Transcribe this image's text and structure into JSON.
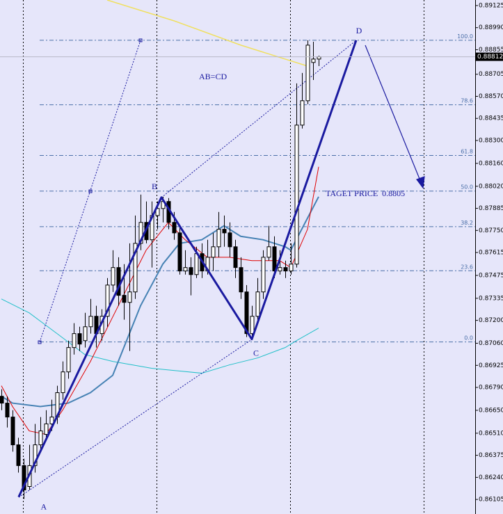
{
  "chart_data": {
    "type": "candlestick",
    "xlim": [
      -0.25,
      85.125
    ],
    "ylim": [
      0.86016,
      0.89159
    ],
    "yticks": [
      0.89125,
      {
        "value": 0.8899,
        "label": "0.88990"
      },
      0.88855,
      0.88705,
      {
        "value": 0.8857,
        "label": "0.88570"
      },
      0.88435,
      {
        "value": 0.883,
        "label": "0.88300"
      },
      {
        "value": 0.8816,
        "label": "0.88160"
      },
      {
        "value": 0.8802,
        "label": "0.88020"
      },
      0.87885,
      {
        "value": 0.8775,
        "label": "0.87750"
      },
      0.87615,
      0.87475,
      0.87335,
      {
        "value": 0.872,
        "label": "0.87200"
      },
      {
        "value": 0.8706,
        "label": "0.87060"
      },
      0.86925,
      {
        "value": 0.8679,
        "label": "0.86790"
      },
      {
        "value": 0.8665,
        "label": "0.86650"
      },
      {
        "value": 0.8651,
        "label": "0.86510"
      },
      0.86375,
      {
        "value": 0.8624,
        "label": "0.86240"
      },
      0.86105
    ],
    "current_price": 0.88812,
    "open": [
      0.86736,
      0.86694,
      0.86609,
      0.86439,
      0.86312,
      0.86184,
      0.86312,
      0.86439,
      0.86503,
      0.86567,
      0.86609,
      0.86758,
      0.86885,
      0.87034,
      0.87119,
      0.87076,
      0.87161,
      0.87225,
      0.87119,
      0.87225,
      0.87416,
      0.87523,
      0.87353,
      0.8731,
      0.87374,
      0.87671,
      0.87799,
      0.87693,
      0.87841,
      0.87884,
      0.87927,
      0.87799,
      0.87735,
      0.87502,
      0.87523,
      0.8748,
      0.87608,
      0.87502,
      0.87586,
      0.8765,
      0.87757,
      0.87735,
      0.8765,
      0.87523,
      0.87374,
      0.87119,
      0.87225,
      0.87374,
      0.87586,
      0.8765,
      0.87502,
      0.87523,
      0.87502,
      0.87544,
      0.88394,
      0.88543,
      0.88777,
      0.88798
    ],
    "high": [
      0.86779,
      0.86736,
      0.86651,
      0.86482,
      0.86354,
      0.86439,
      0.86567,
      0.86609,
      0.86651,
      0.86715,
      0.868,
      0.86949,
      0.87076,
      0.87183,
      0.87161,
      0.87246,
      0.87331,
      0.87289,
      0.87268,
      0.87459,
      0.87629,
      0.87586,
      0.87544,
      0.87671,
      0.87841,
      0.87969,
      0.87927,
      0.87927,
      0.87927,
      0.87956,
      0.87948,
      0.87863,
      0.87778,
      0.87629,
      0.87586,
      0.8765,
      0.87671,
      0.87693,
      0.87735,
      0.87863,
      0.87841,
      0.87799,
      0.87693,
      0.87586,
      0.87416,
      0.87289,
      0.87459,
      0.87629,
      0.87778,
      0.87714,
      0.87629,
      0.87565,
      0.87671,
      0.88649,
      0.88713,
      0.88913,
      0.88904,
      0.88819
    ],
    "low": [
      0.86651,
      0.86545,
      0.86397,
      0.86269,
      0.86108,
      0.86163,
      0.86269,
      0.86397,
      0.86482,
      0.86524,
      0.86567,
      0.86715,
      0.86843,
      0.86991,
      0.87013,
      0.87034,
      0.87119,
      0.87034,
      0.87076,
      0.87161,
      0.87374,
      0.87289,
      0.87204,
      0.87013,
      0.87331,
      0.87629,
      0.87671,
      0.87523,
      0.87757,
      0.87799,
      0.87757,
      0.87693,
      0.8748,
      0.8748,
      0.87353,
      0.87459,
      0.87459,
      0.8748,
      0.87502,
      0.87586,
      0.8765,
      0.87586,
      0.87459,
      0.87331,
      0.87098,
      0.87085,
      0.87183,
      0.87331,
      0.87565,
      0.87459,
      0.8748,
      0.87459,
      0.8748,
      0.87523,
      0.88373,
      0.88522,
      0.8867,
      0.88755
    ],
    "close": [
      0.86694,
      0.86609,
      0.86439,
      0.86312,
      0.86163,
      0.86312,
      0.86439,
      0.86524,
      0.86567,
      0.86609,
      0.86758,
      0.86885,
      0.87034,
      0.87119,
      0.87055,
      0.87161,
      0.87225,
      0.87119,
      0.87225,
      0.87416,
      0.87523,
      0.87353,
      0.8731,
      0.87374,
      0.87671,
      0.87799,
      0.87693,
      0.87841,
      0.87884,
      0.87927,
      0.87799,
      0.87735,
      0.87502,
      0.87523,
      0.8748,
      0.87608,
      0.87502,
      0.87586,
      0.8765,
      0.87757,
      0.87735,
      0.8765,
      0.87523,
      0.87374,
      0.87119,
      0.87225,
      0.87374,
      0.87586,
      0.8765,
      0.87502,
      0.87523,
      0.87502,
      0.87544,
      0.88394,
      0.88543,
      0.88883,
      0.88798,
      0.88812
    ],
    "lines": [
      {
        "color": "#f0e060",
        "width": 1.5,
        "x": [
          19,
          31,
          43,
          55
        ],
        "values": [
          0.89159,
          0.89032,
          0.88883,
          0.88755
        ]
      },
      {
        "color": "#20c0c8",
        "width": 1,
        "x": [
          0,
          5,
          10,
          15,
          20,
          27,
          36,
          41,
          46,
          51,
          53,
          57
        ],
        "values": [
          0.87331,
          0.87246,
          0.87119,
          0.86991,
          0.86949,
          0.86907,
          0.86877,
          0.86928,
          0.8697,
          0.87034,
          0.87076,
          0.87153
        ]
      },
      {
        "color": "#4682b4",
        "width": 2,
        "x": [
          0,
          2,
          7,
          12,
          16,
          20,
          25,
          29,
          32,
          36,
          40,
          43,
          47,
          51,
          52,
          57
        ],
        "values": [
          0.86736,
          0.86694,
          0.86673,
          0.86694,
          0.86758,
          0.86864,
          0.87289,
          0.87544,
          0.87671,
          0.87693,
          0.87778,
          0.87714,
          0.87693,
          0.8765,
          0.87629,
          0.87956
        ]
      },
      {
        "color": "#e00000",
        "width": 1,
        "x": [
          0,
          2,
          5,
          8,
          11,
          16,
          21,
          26,
          30,
          33,
          37,
          41,
          45,
          50,
          52,
          55,
          57
        ],
        "values": [
          0.868,
          0.86673,
          0.86524,
          0.86503,
          0.86651,
          0.86949,
          0.87289,
          0.87629,
          0.87799,
          0.87693,
          0.87586,
          0.87586,
          0.87565,
          0.87565,
          0.87523,
          0.87757,
          0.88139
        ]
      }
    ],
    "fibonacci": {
      "color": "#4a6fa8",
      "low": 0.87068,
      "high": 0.88913,
      "levels": [
        {
          "value": 0,
          "label": "0.0"
        },
        23.6,
        38.2,
        {
          "value": 50,
          "label": "50.0"
        },
        61.8,
        78.6,
        {
          "value": 100,
          "label": "100.0"
        }
      ]
    },
    "pattern": {
      "color": "#1a1aa0",
      "points": [
        {
          "label": "A",
          "x": 3.1,
          "value": 0.8612
        },
        {
          "label": "B",
          "x": 28.75,
          "value": 0.87952
        },
        {
          "label": "C",
          "x": 45,
          "value": 0.87085
        },
        {
          "label": "D",
          "x": 63.75,
          "value": 0.88913
        }
      ]
    },
    "annotations": [
      "AB=CD",
      "TAGET PRICE  0.8805"
    ]
  }
}
